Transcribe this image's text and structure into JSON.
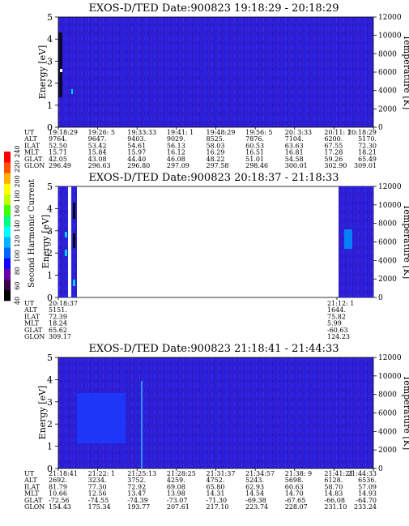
{
  "chart_data": [
    {
      "type": "heatmap",
      "title": "EXOS-D/TED   Date:900823  19:18:29 - 20:18:29",
      "ylabel": "Energy [eV]",
      "y2label": "Temperature [K]",
      "ylim": [
        0,
        5
      ],
      "y2lim": [
        0,
        12000
      ],
      "yticks": [
        "0",
        "1",
        "2",
        "3",
        "4",
        "5"
      ],
      "y2ticks": [
        "0",
        "2000",
        "4000",
        "6000",
        "8000",
        "10000",
        "12000"
      ],
      "coverage": "full",
      "ephemeris": {
        "labels": [
          "UT",
          "ALT",
          "ILAT",
          "MLT",
          "GLAT",
          "GLON"
        ],
        "columns": [
          [
            "19:18:29",
            "9764.",
            "52.50",
            "15.71",
            "42.05",
            "296.49"
          ],
          [
            "19:26: 5",
            "9647.",
            "53.42",
            "15.84",
            "43.08",
            "296.63"
          ],
          [
            "19:33:33",
            "9403.",
            "54.61",
            "15.97",
            "44.40",
            "296.80"
          ],
          [
            "19:41: 1",
            "9029.",
            "56.13",
            "16.12",
            "46.08",
            "297.09"
          ],
          [
            "19:48:29",
            "8525.",
            "58.03",
            "16.29",
            "48.22",
            "297.58"
          ],
          [
            "19:56: 5",
            "7876.",
            "60.53",
            "16.51",
            "51.01",
            "298.46"
          ],
          [
            "20: 3:33",
            "7104.",
            "63.63",
            "16.81",
            "54.58",
            "300.01"
          ],
          [
            "20:11: 1",
            "6200.",
            "67.55",
            "17.28",
            "59.26",
            "302.90"
          ],
          [
            "20:18:29",
            "5170.",
            "72.30",
            "18.21",
            "65.49",
            "309.01"
          ]
        ]
      }
    },
    {
      "type": "heatmap",
      "title": "EXOS-D/TED   Date:900823  20:18:37 - 21:18:33",
      "ylabel": "Energy [eV]",
      "y2label": "Temperature [K]",
      "ylim": [
        0,
        5
      ],
      "y2lim": [
        0,
        12000
      ],
      "yticks": [
        "0",
        "1",
        "2",
        "3",
        "4",
        "5"
      ],
      "y2ticks": [
        "0",
        "2000",
        "4000",
        "6000",
        "8000",
        "10000",
        "12000"
      ],
      "coverage": "partial",
      "colorbar": {
        "label": "Second Harmonic Current",
        "ticks": [
          "40",
          "60",
          "80",
          "100",
          "120",
          "140",
          "160",
          "180",
          "200",
          "220",
          "240"
        ],
        "colors": [
          "#000000",
          "#3a0050",
          "#6a00a8",
          "#1400ff",
          "#0064ff",
          "#00b4ff",
          "#00ffff",
          "#00ff80",
          "#40ff00",
          "#c0ff00",
          "#ffff00",
          "#ffb000",
          "#ff5000",
          "#ff0000"
        ]
      },
      "ephemeris": {
        "labels": [
          "UT",
          "ALT",
          "ILAT",
          "MLT",
          "GLAT",
          "GLON"
        ],
        "columns": [
          [
            "20:18:37",
            "5151.",
            "72.39",
            "18.24",
            "65.62",
            "309.17"
          ],
          [
            "21:12: 1",
            "1644.",
            "75.82",
            "5.99",
            "-60.63",
            "124.23"
          ]
        ]
      }
    },
    {
      "type": "heatmap",
      "title": "EXOS-D/TED   Date:900823  21:18:41 - 21:44:33",
      "ylabel": "Energy [eV]",
      "y2label": "Temperature [K]",
      "ylim": [
        0,
        5
      ],
      "y2lim": [
        0,
        12000
      ],
      "yticks": [
        "0",
        "1",
        "2",
        "3",
        "4",
        "5"
      ],
      "y2ticks": [
        "0",
        "2000",
        "4000",
        "6000",
        "8000",
        "10000",
        "12000"
      ],
      "coverage": "full",
      "ephemeris": {
        "labels": [
          "UT",
          "ALT",
          "ILAT",
          "MLT",
          "GLAT",
          "GLON"
        ],
        "columns": [
          [
            "21:18:41",
            "2692.",
            "81.79",
            "10.66",
            "-72.56",
            "154.43"
          ],
          [
            "21:22: 1",
            "3234.",
            "77.30",
            "12.56",
            "-74.55",
            "175.34"
          ],
          [
            "21:25:13",
            "3752.",
            "72.92",
            "13.47",
            "-74.39",
            "193.77"
          ],
          [
            "21:28:25",
            "4259.",
            "69.08",
            "13.98",
            "-73.07",
            "207.61"
          ],
          [
            "21:31:37",
            "4752.",
            "65.80",
            "14.31",
            "-71.30",
            "217.10"
          ],
          [
            "21:34:57",
            "5243.",
            "62.93",
            "14.54",
            "-69.38",
            "223.74"
          ],
          [
            "21:38: 9",
            "5698.",
            "60.63",
            "14.70",
            "-67.65",
            "228.07"
          ],
          [
            "21:41:21",
            "6128.",
            "58.70",
            "14.83",
            "-66.08",
            "231.10"
          ],
          [
            "21:44:33",
            "6536.",
            "57.09",
            "14.93",
            "-64.70",
            "233.24"
          ]
        ]
      }
    }
  ]
}
